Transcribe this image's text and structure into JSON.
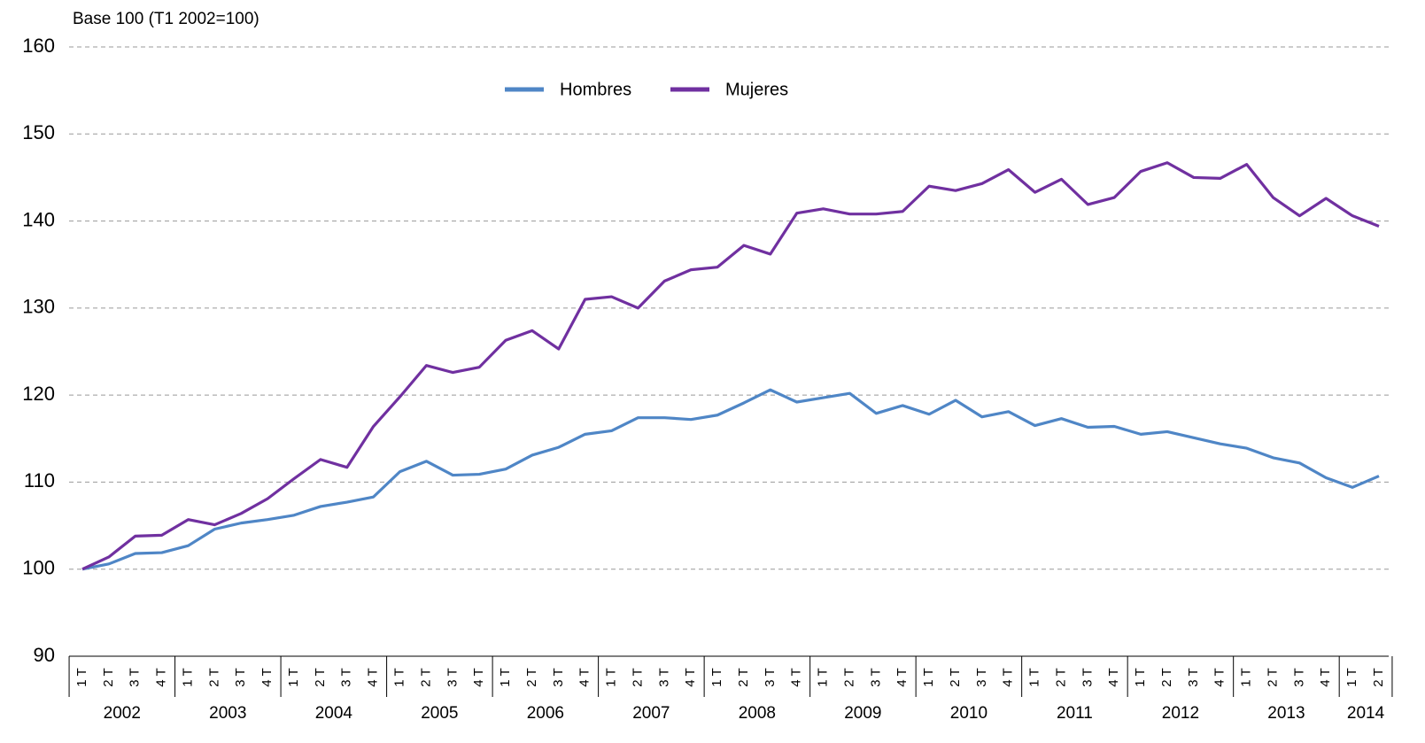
{
  "chart_data": {
    "type": "line",
    "y_axis_label": "Base 100 (T1 2002=100)",
    "categories": [
      "1 T",
      "2 T",
      "3 T",
      "4 T",
      "1 T",
      "2 T",
      "3 T",
      "4 T",
      "1 T",
      "2 T",
      "3 T",
      "4 T",
      "1 T",
      "2 T",
      "3 T",
      "4 T",
      "1 T",
      "2 T",
      "3 T",
      "4 T",
      "1 T",
      "2 T",
      "3 T",
      "4 T",
      "1 T",
      "2 T",
      "3 T",
      "4 T",
      "1 T",
      "2 T",
      "3 T",
      "4 T",
      "1 T",
      "2 T",
      "3 T",
      "4 T",
      "1 T",
      "2 T",
      "3 T",
      "4 T",
      "1 T",
      "2 T",
      "3 T",
      "4 T",
      "1 T",
      "2 T",
      "3 T",
      "4 T",
      "1 T",
      "2 T"
    ],
    "year_groups": [
      "2002",
      "2003",
      "2004",
      "2005",
      "2006",
      "2007",
      "2008",
      "2009",
      "2010",
      "2011",
      "2012",
      "2013",
      "2014"
    ],
    "series": [
      {
        "name": "Hombres",
        "color": "#4f86c6",
        "values": [
          100,
          100.6,
          101.8,
          101.9,
          102.7,
          104.6,
          105.3,
          105.7,
          106.2,
          107.2,
          107.7,
          108.3,
          111.2,
          112.4,
          110.8,
          110.9,
          111.5,
          113.1,
          114.0,
          115.5,
          115.9,
          117.4,
          117.4,
          117.2,
          117.7,
          119.1,
          120.6,
          119.2,
          119.7,
          120.2,
          117.9,
          118.8,
          117.8,
          119.4,
          117.5,
          118.1,
          116.5,
          117.3,
          116.3,
          116.4,
          115.5,
          115.8,
          115.1,
          114.4,
          113.9,
          112.8,
          112.2,
          110.5,
          109.4,
          110.7
        ]
      },
      {
        "name": "Mujeres",
        "color": "#7030a0",
        "values": [
          100,
          101.4,
          103.8,
          103.9,
          105.7,
          105.1,
          106.4,
          108.1,
          110.4,
          112.6,
          111.7,
          116.4,
          119.8,
          123.4,
          122.6,
          123.2,
          126.3,
          127.4,
          125.3,
          131.0,
          131.3,
          130.0,
          133.1,
          134.4,
          134.7,
          137.2,
          136.2,
          140.9,
          141.4,
          140.8,
          140.8,
          141.1,
          144.0,
          143.5,
          144.3,
          145.9,
          143.3,
          144.8,
          141.9,
          142.7,
          145.7,
          146.7,
          145.0,
          144.9,
          146.5,
          142.7,
          140.6,
          142.6,
          140.6,
          139.4
        ]
      }
    ],
    "ylim": [
      90,
      160
    ],
    "yticks": [
      90,
      100,
      110,
      120,
      130,
      140,
      150,
      160
    ],
    "grid": true,
    "legend": "top"
  }
}
